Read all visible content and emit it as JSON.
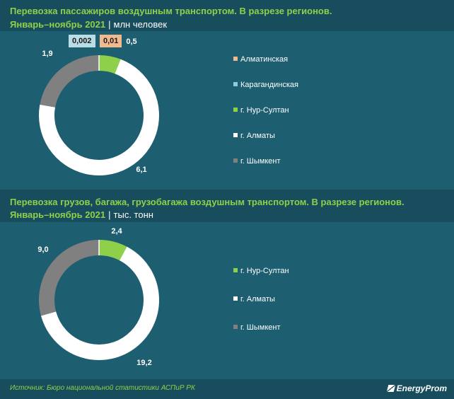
{
  "footer": {
    "source": "Источник: Бюро национальной статистики АСПиР РК",
    "logo": "EnergyProm"
  },
  "chart_data": [
    {
      "type": "pie",
      "title": "Перевозка пассажиров воздушным транспортом. В разрезе регионов.",
      "period": "Январь–ноябрь 2021",
      "unit": "млн человек",
      "categories": [
        "Алматинская",
        "Карагандинская",
        "г. Нур-Султан",
        "г. Алматы",
        "г. Шымкент"
      ],
      "values": [
        0.01,
        0.002,
        0.5,
        6.1,
        1.9
      ],
      "labels": [
        "0,01",
        "0,002",
        "0,5",
        "6,1",
        "1,9"
      ],
      "colors": [
        "#f3b98e",
        "#8fcbd9",
        "#8fd04a",
        "#ffffff",
        "#808080"
      ]
    },
    {
      "type": "pie",
      "title": "Перевозка грузов, багажа, грузобагажа воздушным транспортом. В разрезе регионов.",
      "period": "Январь–ноябрь 2021",
      "unit": "тыс. тонн",
      "categories": [
        "г. Нур-Султан",
        "г. Алматы",
        "г. Шымкент"
      ],
      "values": [
        2.4,
        19.2,
        9.0
      ],
      "labels": [
        "2,4",
        "19,2",
        "9,0"
      ],
      "colors": [
        "#8fd04a",
        "#ffffff",
        "#808080"
      ]
    }
  ]
}
